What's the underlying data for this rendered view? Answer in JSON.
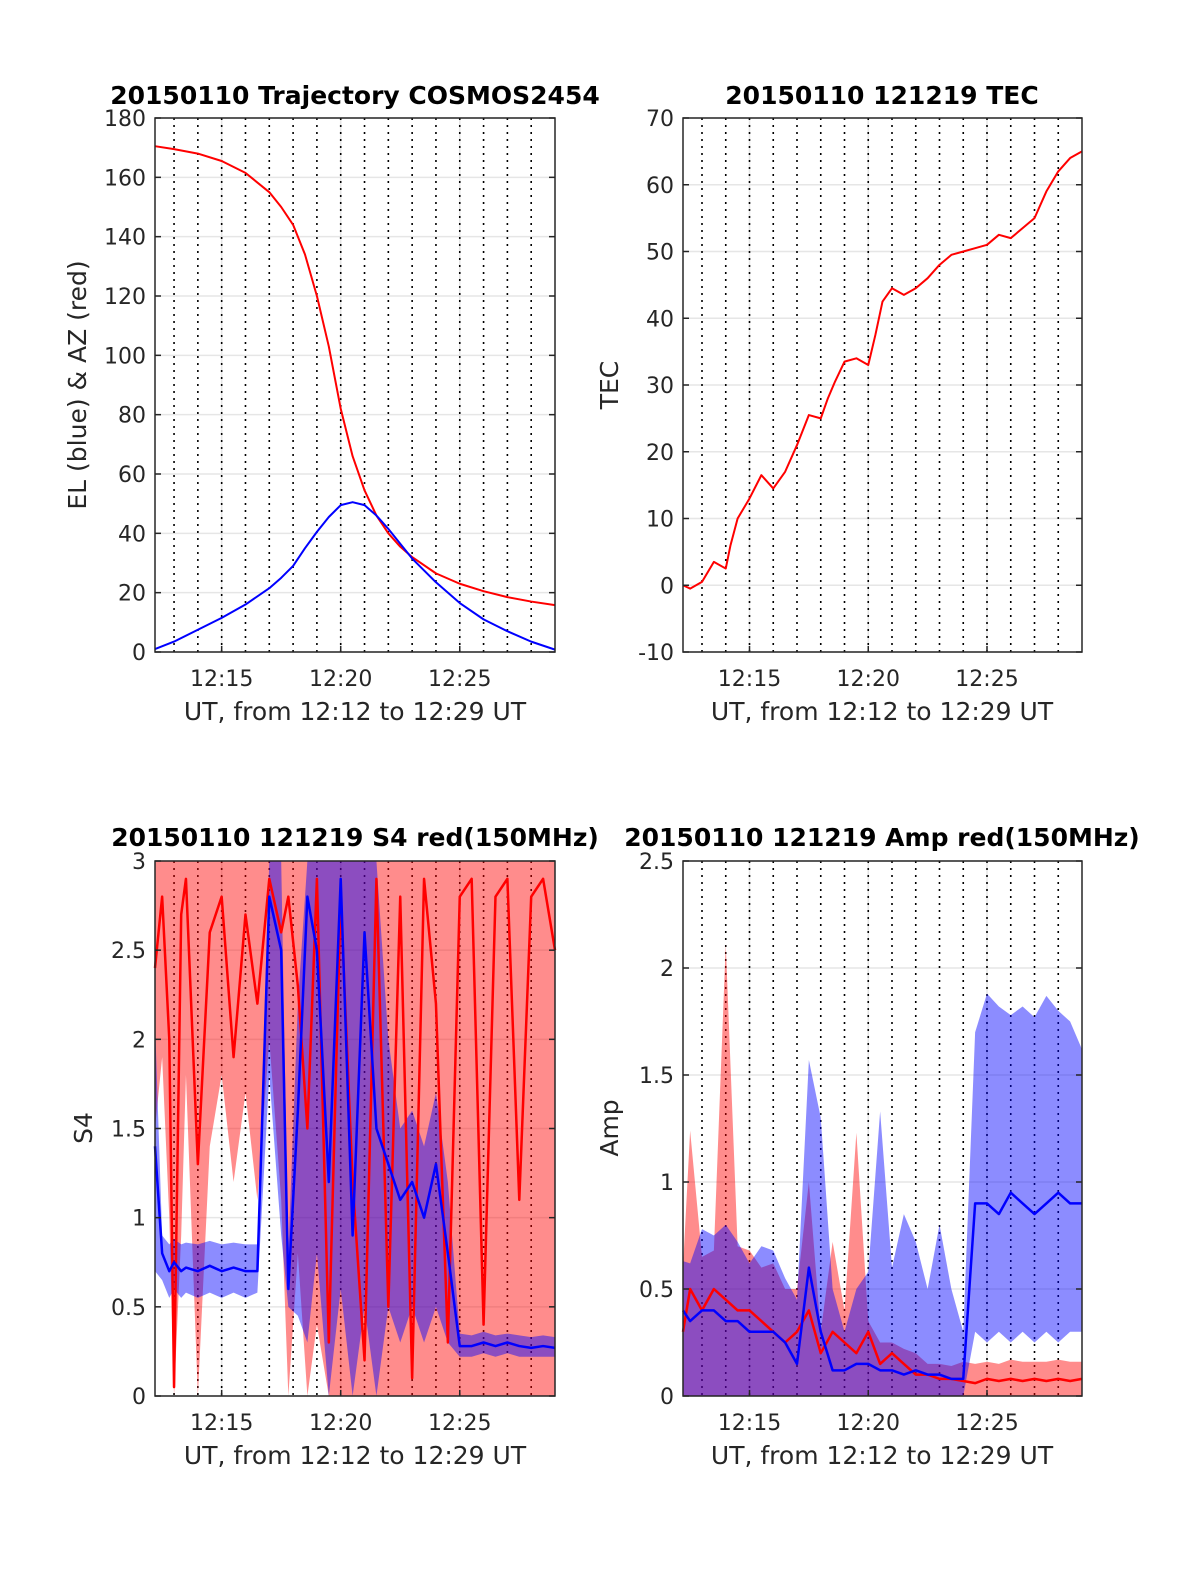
{
  "figure": {
    "colors": {
      "el": "#0000ff",
      "az": "#ff0000",
      "grid": "#e6e6e6",
      "vline": "#000000",
      "axis": "#262626"
    },
    "vline_times": [
      "12:13",
      "12:14",
      "12:15",
      "12:16",
      "12:17",
      "12:18",
      "12:19",
      "12:20",
      "12:21",
      "12:22",
      "12:23",
      "12:24",
      "12:25",
      "12:26",
      "12:27",
      "12:28"
    ]
  },
  "chart_data": [
    {
      "type": "line",
      "title": "20150110 Trajectory COSMOS2454",
      "xlabel": "UT, from 12:12 to 12:29 UT",
      "ylabel": "EL (blue) & AZ (red)",
      "x_ticks": [
        "12:15",
        "12:20",
        "12:25"
      ],
      "xlim_minutes": [
        12.2,
        29.0
      ],
      "ylim": [
        0,
        180
      ],
      "y_ticks": [
        0,
        20,
        40,
        60,
        80,
        100,
        120,
        140,
        160,
        180
      ],
      "x_minutes": [
        12.2,
        13.0,
        14.0,
        15.0,
        16.0,
        17.0,
        17.5,
        18.0,
        18.5,
        19.0,
        19.5,
        20.0,
        20.5,
        21.0,
        21.5,
        22.0,
        22.5,
        23.0,
        24.0,
        25.0,
        26.0,
        27.0,
        28.0,
        29.0
      ],
      "series": [
        {
          "name": "AZ",
          "color": "#ff0000",
          "values": [
            170.5,
            169.5,
            168,
            165.5,
            161.5,
            155,
            150,
            144,
            134,
            120,
            103,
            82,
            66,
            54.5,
            46,
            40,
            35.5,
            32,
            26.5,
            23,
            20.5,
            18.5,
            17,
            15.8
          ]
        },
        {
          "name": "EL",
          "color": "#0000ff",
          "values": [
            1,
            3.5,
            7.5,
            11.5,
            16,
            21.5,
            25,
            29,
            35,
            40.5,
            45.5,
            49.5,
            50.5,
            49.5,
            46,
            41.5,
            36.5,
            31.5,
            23.5,
            16.5,
            11,
            7,
            3.5,
            0.8
          ]
        }
      ],
      "grid": true
    },
    {
      "type": "line",
      "title": "20150110 121219 TEC",
      "xlabel": "UT, from 12:12 to 12:29 UT",
      "ylabel": "TEC",
      "x_ticks": [
        "12:15",
        "12:20",
        "12:25"
      ],
      "xlim_minutes": [
        12.2,
        29.0
      ],
      "ylim": [
        -10,
        70
      ],
      "y_ticks": [
        -10,
        0,
        10,
        20,
        30,
        40,
        50,
        60,
        70
      ],
      "x_minutes": [
        12.2,
        12.5,
        13.0,
        13.5,
        14.0,
        14.2,
        14.5,
        15.0,
        15.5,
        16.0,
        16.5,
        17.0,
        17.5,
        18.0,
        18.3,
        18.6,
        19.0,
        19.5,
        20.0,
        20.3,
        20.6,
        21.0,
        21.5,
        22.0,
        22.5,
        23.0,
        23.5,
        24.0,
        24.5,
        25.0,
        25.5,
        26.0,
        26.5,
        27.0,
        27.5,
        28.0,
        28.5,
        29.0
      ],
      "series": [
        {
          "name": "TEC",
          "color": "#ff0000",
          "values": [
            0,
            -0.5,
            0.5,
            3.5,
            2.5,
            6,
            10,
            13,
            16.5,
            14.5,
            17,
            21,
            25.5,
            25,
            28,
            30.5,
            33.5,
            34,
            33,
            37.5,
            42.5,
            44.5,
            43.5,
            44.5,
            46,
            48,
            49.5,
            50,
            50.5,
            51,
            52.5,
            52,
            53.5,
            55,
            59,
            62,
            64,
            65
          ]
        }
      ],
      "grid": true
    },
    {
      "type": "line",
      "title": "20150110 121219 S4 red(150MHz)",
      "xlabel": "UT, from 12:12 to 12:29 UT",
      "ylabel": "S4",
      "x_ticks": [
        "12:15",
        "12:20",
        "12:25"
      ],
      "xlim_minutes": [
        12.2,
        29.0
      ],
      "ylim": [
        0,
        3
      ],
      "y_ticks": [
        0,
        0.5,
        1,
        1.5,
        2,
        2.5,
        3
      ],
      "x_minutes": [
        12.2,
        12.5,
        12.8,
        13.0,
        13.3,
        13.5,
        14.0,
        14.5,
        15.0,
        15.5,
        16.0,
        16.5,
        17.0,
        17.5,
        17.8,
        18.2,
        18.6,
        19.0,
        19.5,
        20.0,
        20.5,
        21.0,
        21.5,
        22.0,
        22.5,
        23.0,
        23.5,
        24.0,
        24.5,
        25.0,
        25.5,
        26.0,
        26.5,
        27.0,
        27.5,
        28.0,
        28.5,
        29.0
      ],
      "series": [
        {
          "name": "red",
          "color": "#ff0000",
          "values": [
            2.4,
            2.8,
            2.0,
            0.05,
            2.7,
            2.9,
            1.3,
            2.6,
            2.8,
            1.9,
            2.7,
            2.2,
            2.9,
            2.6,
            2.8,
            2.3,
            1.5,
            2.9,
            0.3,
            2.8,
            1.2,
            0.2,
            2.9,
            0.5,
            2.8,
            0.1,
            2.9,
            2.2,
            0.3,
            2.8,
            2.9,
            0.4,
            2.8,
            2.9,
            1.1,
            2.8,
            2.9,
            2.5
          ],
          "range_low": [
            1.5,
            1.9,
            1.0,
            0.0,
            0.9,
            1.8,
            0.0,
            1.4,
            1.8,
            1.2,
            1.7,
            1.1,
            2.0,
            1.1,
            0.0,
            0.8,
            0.0,
            0.4,
            0.0,
            0.0,
            0.0,
            0.0,
            0.0,
            0.0,
            0.0,
            0.0,
            0.0,
            0.0,
            0.0,
            0.0,
            0.0,
            0.0,
            0.0,
            0.0,
            0.0,
            0.0,
            0.0,
            0.0
          ],
          "range_high": [
            3.0,
            3.0,
            3.0,
            3.0,
            3.0,
            3.0,
            3.0,
            3.0,
            3.0,
            3.0,
            3.0,
            3.0,
            3.0,
            3.0,
            3.0,
            3.0,
            3.0,
            3.0,
            3.0,
            3.0,
            3.0,
            3.0,
            3.0,
            3.0,
            3.0,
            3.0,
            3.0,
            3.0,
            3.0,
            3.0,
            3.0,
            3.0,
            3.0,
            3.0,
            3.0,
            3.0,
            3.0,
            3.0
          ]
        },
        {
          "name": "blue",
          "color": "#0000ff",
          "values": [
            1.4,
            0.8,
            0.7,
            0.75,
            0.7,
            0.72,
            0.7,
            0.73,
            0.7,
            0.72,
            0.7,
            0.7,
            2.8,
            2.5,
            0.6,
            1.6,
            2.8,
            2.5,
            1.2,
            2.9,
            0.9,
            2.6,
            1.5,
            1.3,
            1.1,
            1.2,
            1.0,
            1.3,
            0.8,
            0.28,
            0.28,
            0.3,
            0.28,
            0.3,
            0.28,
            0.27,
            0.28,
            0.27
          ],
          "range_low": [
            0.7,
            0.65,
            0.55,
            0.6,
            0.55,
            0.58,
            0.55,
            0.58,
            0.55,
            0.58,
            0.55,
            0.58,
            1.8,
            0.9,
            0.5,
            0.45,
            0.3,
            0.8,
            0.0,
            0.6,
            0.0,
            0.5,
            0.0,
            0.5,
            0.3,
            0.5,
            0.3,
            0.5,
            0.3,
            0.22,
            0.22,
            0.24,
            0.22,
            0.24,
            0.22,
            0.22,
            0.22,
            0.22
          ],
          "range_high": [
            2.1,
            0.9,
            0.85,
            0.88,
            0.85,
            0.86,
            0.85,
            0.87,
            0.85,
            0.86,
            0.85,
            0.85,
            3.0,
            3.0,
            0.8,
            2.2,
            3.0,
            3.0,
            3.0,
            3.0,
            3.0,
            3.0,
            3.0,
            2.0,
            1.5,
            1.6,
            1.4,
            1.7,
            1.2,
            0.35,
            0.34,
            0.36,
            0.34,
            0.35,
            0.34,
            0.33,
            0.34,
            0.33
          ]
        }
      ],
      "grid": true
    },
    {
      "type": "line",
      "title": "20150110 121219 Amp red(150MHz)",
      "xlabel": "UT, from 12:12 to 12:29 UT",
      "ylabel": "Amp",
      "x_ticks": [
        "12:15",
        "12:20",
        "12:25"
      ],
      "xlim_minutes": [
        12.2,
        29.0
      ],
      "ylim": [
        0,
        2.5
      ],
      "y_ticks": [
        0,
        0.5,
        1,
        1.5,
        2,
        2.5
      ],
      "x_minutes": [
        12.2,
        12.5,
        13.0,
        13.5,
        14.0,
        14.5,
        15.0,
        15.5,
        16.0,
        16.5,
        17.0,
        17.5,
        18.0,
        18.5,
        19.0,
        19.5,
        20.0,
        20.5,
        21.0,
        21.5,
        22.0,
        22.5,
        23.0,
        23.5,
        24.0,
        24.5,
        25.0,
        25.5,
        26.0,
        26.5,
        27.0,
        27.5,
        28.0,
        28.5,
        29.0
      ],
      "series": [
        {
          "name": "red",
          "color": "#ff0000",
          "values": [
            0.3,
            0.5,
            0.4,
            0.5,
            0.45,
            0.4,
            0.4,
            0.35,
            0.3,
            0.25,
            0.3,
            0.4,
            0.2,
            0.3,
            0.25,
            0.2,
            0.3,
            0.15,
            0.2,
            0.15,
            0.1,
            0.1,
            0.08,
            0.08,
            0.07,
            0.06,
            0.08,
            0.07,
            0.08,
            0.07,
            0.08,
            0.07,
            0.08,
            0.07,
            0.08
          ],
          "range_low": [
            0,
            0,
            0,
            0,
            0,
            0,
            0,
            0,
            0,
            0,
            0,
            0,
            0,
            0,
            0,
            0,
            0,
            0,
            0,
            0,
            0,
            0,
            0,
            0,
            0,
            0,
            0,
            0,
            0,
            0,
            0,
            0,
            0,
            0,
            0
          ],
          "range_high": [
            0.6,
            1.24,
            0.65,
            0.68,
            2.11,
            0.7,
            0.68,
            0.6,
            0.62,
            0.5,
            0.5,
            1.0,
            0.3,
            0.72,
            0.4,
            1.23,
            0.35,
            0.25,
            0.25,
            0.22,
            0.2,
            0.15,
            0.15,
            0.14,
            0.16,
            0.15,
            0.16,
            0.15,
            0.17,
            0.16,
            0.16,
            0.16,
            0.17,
            0.16,
            0.16
          ]
        },
        {
          "name": "blue",
          "color": "#0000ff",
          "values": [
            0.4,
            0.35,
            0.4,
            0.4,
            0.35,
            0.35,
            0.3,
            0.3,
            0.3,
            0.25,
            0.15,
            0.6,
            0.3,
            0.12,
            0.12,
            0.15,
            0.15,
            0.12,
            0.12,
            0.1,
            0.12,
            0.1,
            0.1,
            0.08,
            0.08,
            0.9,
            0.9,
            0.85,
            0.95,
            0.9,
            0.85,
            0.9,
            0.95,
            0.9,
            0.9
          ],
          "range_low": [
            0,
            0,
            0,
            0,
            0,
            0,
            0,
            0,
            0,
            0,
            0,
            0,
            0,
            0,
            0,
            0,
            0,
            0,
            0,
            0,
            0,
            0,
            0,
            0,
            0,
            0.3,
            0.25,
            0.3,
            0.25,
            0.3,
            0.25,
            0.3,
            0.25,
            0.3,
            0.3
          ],
          "range_high": [
            0.63,
            0.62,
            0.78,
            0.75,
            0.8,
            0.72,
            0.62,
            0.7,
            0.68,
            0.55,
            0.45,
            1.57,
            1.3,
            0.5,
            0.3,
            0.5,
            0.58,
            1.33,
            0.6,
            0.85,
            0.72,
            0.5,
            0.8,
            0.5,
            0.3,
            1.7,
            1.88,
            1.82,
            1.78,
            1.82,
            1.77,
            1.87,
            1.8,
            1.75,
            1.62
          ]
        }
      ],
      "grid": true
    }
  ]
}
